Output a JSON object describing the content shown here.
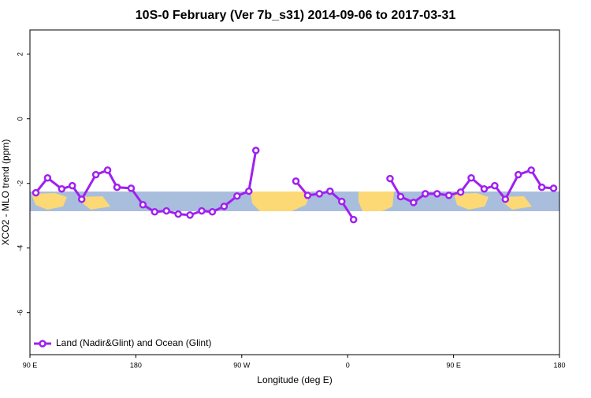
{
  "chart_data": {
    "type": "line",
    "title": "10S-0 February (Ver 7b_s31)   2014-09-06 to 2017-03-31",
    "xlabel": "Longitude (deg E)",
    "ylabel": "XCO2 - MLO trend (ppm)",
    "x": [
      95,
      105,
      117,
      126,
      134,
      146,
      156,
      164,
      176,
      186,
      196,
      206,
      216,
      226,
      236,
      245,
      255,
      266,
      276,
      282,
      300,
      316,
      326,
      336,
      345,
      355,
      365,
      380,
      396,
      405,
      416,
      426,
      436,
      446,
      456,
      465,
      476,
      485,
      494,
      505,
      516,
      525,
      535
    ],
    "series": [
      {
        "name": "Land (Nadir&Glint) and Ocean (Glint)",
        "color": "#a020f0",
        "values": [
          -2.29,
          -1.83,
          -2.17,
          -2.07,
          -2.49,
          -1.73,
          -1.59,
          -2.12,
          -2.15,
          -2.66,
          -2.88,
          -2.85,
          -2.95,
          -2.98,
          -2.85,
          -2.88,
          -2.71,
          -2.39,
          -2.24,
          -0.98,
          null,
          -1.93,
          -2.37,
          -2.32,
          -2.24,
          -2.56,
          -3.12,
          null,
          -1.85,
          -2.41,
          -2.59,
          -2.32,
          -2.32,
          -2.37,
          -2.27,
          -1.83,
          -2.17,
          -2.07,
          -2.49,
          -1.73,
          -1.59,
          -2.12,
          -2.15
        ]
      }
    ],
    "xlim": [
      90,
      540
    ],
    "ylim": [
      -7.3,
      2.75
    ],
    "xticks": [
      {
        "value": 90,
        "label": "90 E"
      },
      {
        "value": 180,
        "label": "180"
      },
      {
        "value": 270,
        "label": "90 W"
      },
      {
        "value": 360,
        "label": "0"
      },
      {
        "value": 450,
        "label": "90 E"
      },
      {
        "value": 540,
        "label": "180"
      }
    ],
    "yticks": [
      -6,
      -4,
      -2,
      0,
      2
    ],
    "legend": "bottom-left"
  }
}
